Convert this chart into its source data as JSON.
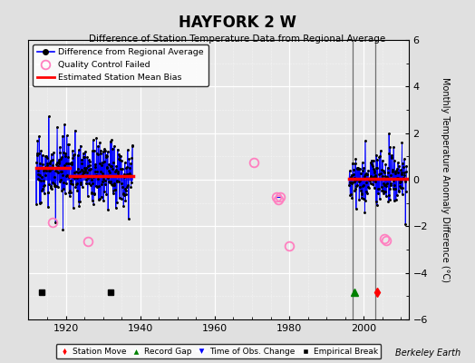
{
  "title": "HAYFORK 2 W",
  "subtitle": "Difference of Station Temperature Data from Regional Average",
  "ylabel": "Monthly Temperature Anomaly Difference (°C)",
  "xlabel_credit": "Berkeley Earth",
  "xlim": [
    1910,
    2012
  ],
  "ylim": [
    -6,
    6
  ],
  "yticks": [
    -6,
    -4,
    -2,
    0,
    2,
    4,
    6
  ],
  "xticks": [
    1920,
    1940,
    1960,
    1980,
    2000
  ],
  "bg_color": "#e0e0e0",
  "plot_bg": "#e8e8e8",
  "grid_color": "#ffffff",
  "segment1_start": 1912.0,
  "segment1_end": 1938.0,
  "segment2_start": 1996.0,
  "segment2_end": 2011.5,
  "bias1_early": 0.5,
  "bias1_late": 0.15,
  "bias1_break": 1921.0,
  "bias2": 0.05,
  "vertical_lines": [
    1997.0,
    2003.0
  ],
  "station_moves": [
    2003.5
  ],
  "record_gaps": [
    1997.5
  ],
  "empirical_breaks": [
    1913.5,
    1932.0
  ],
  "qc_failed": [
    [
      1916.5,
      -1.85
    ],
    [
      1926.0,
      -2.65
    ],
    [
      1970.5,
      0.75
    ],
    [
      1976.5,
      -0.75
    ],
    [
      1977.0,
      -0.85
    ],
    [
      1977.5,
      -0.75
    ],
    [
      1980.0,
      -2.85
    ],
    [
      2005.5,
      -2.55
    ],
    [
      2006.0,
      -2.6
    ]
  ],
  "qc_connected": [
    [
      1976.5,
      -0.75,
      1977.5,
      -0.75
    ]
  ],
  "seed": 17
}
